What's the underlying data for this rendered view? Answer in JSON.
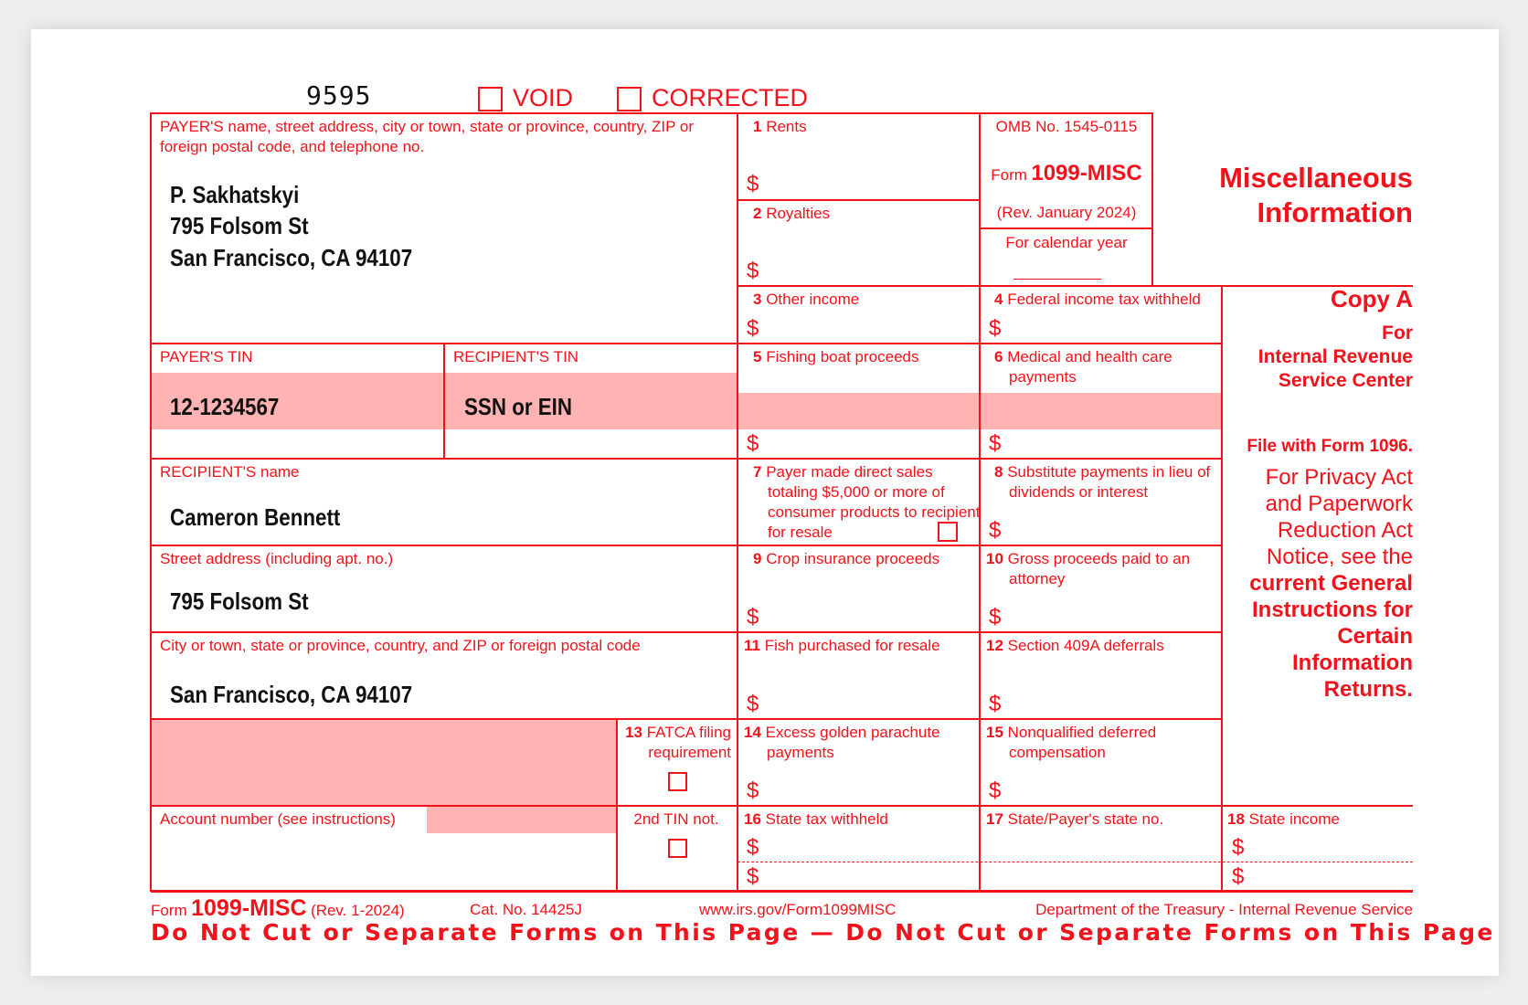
{
  "header": {
    "form_code": "9595",
    "void_label": "VOID",
    "corrected_label": "CORRECTED"
  },
  "payer": {
    "label": "PAYER'S name, street address, city or town, state or province, country, ZIP or foreign postal code, and telephone no.",
    "name": "P. Sakhatskyi",
    "street": "795 Folsom St",
    "city": "San Francisco, CA 94107"
  },
  "payer_tin": {
    "label": "PAYER'S TIN",
    "value": "12-1234567"
  },
  "recipient_tin": {
    "label": "RECIPIENT'S TIN",
    "value": "SSN or EIN"
  },
  "recipient_name": {
    "label": "RECIPIENT'S name",
    "value": "Cameron Bennett"
  },
  "street_address": {
    "label": "Street address (including apt. no.)",
    "value": "795 Folsom St"
  },
  "city_address": {
    "label": "City or town, state or province, country, and ZIP or foreign postal code",
    "value": "San Francisco, CA 94107"
  },
  "account_number": {
    "label": "Account number (see instructions)"
  },
  "fatca": {
    "num": "13",
    "label": "FATCA filing requirement"
  },
  "second_tin": {
    "label": "2nd TIN not."
  },
  "currency_symbol": "$",
  "boxes": {
    "b1": {
      "num": "1",
      "label": "Rents"
    },
    "b2": {
      "num": "2",
      "label": "Royalties"
    },
    "b3": {
      "num": "3",
      "label": "Other income"
    },
    "b4": {
      "num": "4",
      "label": "Federal income tax withheld"
    },
    "b5": {
      "num": "5",
      "label": "Fishing boat proceeds"
    },
    "b6": {
      "num": "6",
      "label": "Medical and health care payments"
    },
    "b7": {
      "num": "7",
      "label": "Payer made direct sales totaling $5,000 or more of consumer products to recipient for resale"
    },
    "b8": {
      "num": "8",
      "label": "Substitute payments in lieu of dividends or interest"
    },
    "b9": {
      "num": "9",
      "label": "Crop insurance proceeds"
    },
    "b10": {
      "num": "10",
      "label": "Gross proceeds paid to an attorney"
    },
    "b11": {
      "num": "11",
      "label": "Fish purchased for resale"
    },
    "b12": {
      "num": "12",
      "label": "Section 409A deferrals"
    },
    "b14": {
      "num": "14",
      "label": "Excess golden parachute payments"
    },
    "b15": {
      "num": "15",
      "label": "Nonqualified deferred compensation"
    },
    "b16": {
      "num": "16",
      "label": "State tax withheld"
    },
    "b17": {
      "num": "17",
      "label": "State/Payer's state no."
    },
    "b18": {
      "num": "18",
      "label": "State income"
    }
  },
  "omb": {
    "omb_no": "OMB No. 1545-0115",
    "form_word": "Form",
    "form_name": "1099-MISC",
    "rev": "(Rev. January 2024)",
    "calendar_year": "For calendar year"
  },
  "side": {
    "title_line1": "Miscellaneous",
    "title_line2": "Information",
    "copy": "Copy A",
    "for": "For",
    "irs_line1": "Internal Revenue",
    "irs_line2": "Service Center",
    "file_with": "File with Form 1096.",
    "privacy_lines": [
      "For Privacy Act",
      "and Paperwork",
      "Reduction Act",
      "Notice, see the"
    ],
    "instructions_lines": [
      "current General",
      "Instructions for",
      "Certain",
      "Information",
      "Returns."
    ]
  },
  "footer": {
    "form_word": "Form",
    "form_name": "1099-MISC",
    "rev": "(Rev. 1-2024)",
    "cat_no": "Cat. No. 14425J",
    "url": "www.irs.gov/Form1099MISC",
    "department": "Department of the Treasury - Internal Revenue Service",
    "warning": "Do Not Cut or Separate Forms on This Page — Do Not Cut or Separate Forms on This Page"
  },
  "colors": {
    "form_red": "#f2121b",
    "shade": "#ffb3b3"
  }
}
